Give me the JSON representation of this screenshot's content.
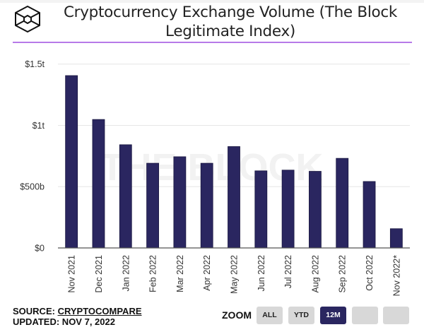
{
  "header": {
    "title_line1": "Cryptocurrency Exchange Volume (The Block",
    "title_line2": "Legitimate Index)",
    "logo_icon": "the-block-cube-logo"
  },
  "watermark": "THE BLOCK",
  "footer": {
    "source_label": "SOURCE: ",
    "source_link": "CRYPTOCOMPARE",
    "updated": "UPDATED: NOV 7, 2022",
    "zoom_label": "ZOOM",
    "zoom_buttons": [
      {
        "label": "ALL",
        "active": false
      },
      {
        "label": "YTD",
        "active": false
      },
      {
        "label": "12M",
        "active": true
      },
      {
        "label": "",
        "active": false
      },
      {
        "label": "",
        "active": false
      }
    ]
  },
  "colors": {
    "bar": "#2a2660",
    "accent_rule": "#b77ae8",
    "grid": "#e6e6e6"
  },
  "chart_data": {
    "type": "bar",
    "title": "Cryptocurrency Exchange Volume (The Block Legitimate Index)",
    "xlabel": "",
    "ylabel": "",
    "categories": [
      "Nov 2021",
      "Dec 2021",
      "Jan 2022",
      "Feb 2022",
      "Mar 2022",
      "Apr 2022",
      "May 2022",
      "Jun 2022",
      "Jul 2022",
      "Aug 2022",
      "Sep 2022",
      "Oct 2022",
      "Nov 2022*"
    ],
    "values": [
      1406,
      1048,
      842,
      691,
      744,
      691,
      827,
      629,
      635,
      625,
      731,
      542,
      157
    ],
    "unit": "billion USD",
    "ylim": [
      0,
      1500
    ],
    "yticks": [
      0,
      500,
      1000,
      1500
    ],
    "ytick_labels": [
      "$0",
      "$500b",
      "$1t",
      "$1.5t"
    ],
    "grid": true,
    "legend": "none"
  }
}
